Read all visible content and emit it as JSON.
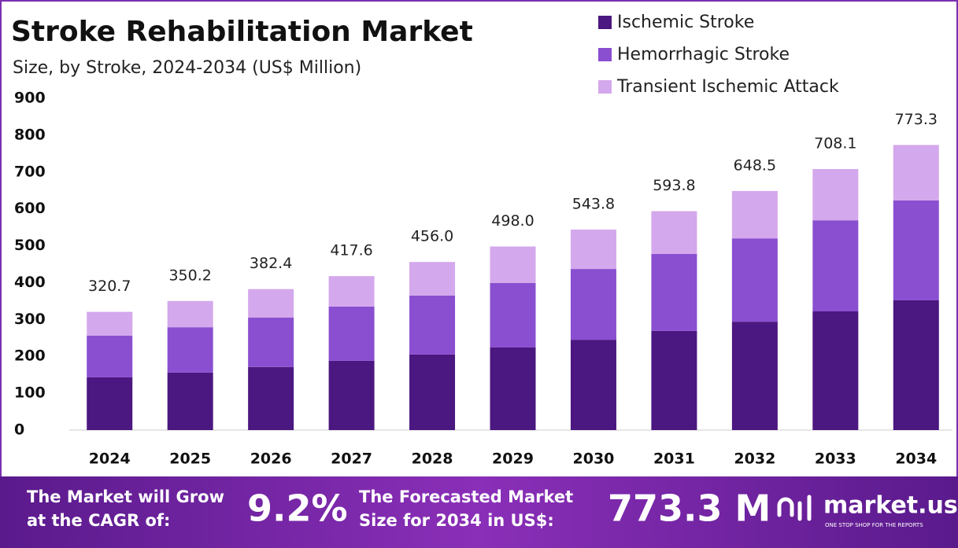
{
  "chart_data": {
    "type": "stacked_bar",
    "title": "Stroke Rehabilitation Market",
    "subtitle": "Size, by Stroke, 2024-2034 (US$ Million)",
    "categories": [
      "2024",
      "2025",
      "2026",
      "2027",
      "2028",
      "2029",
      "2030",
      "2031",
      "2032",
      "2033",
      "2034"
    ],
    "series": [
      {
        "name": "Ischemic Stroke",
        "color": "#4b1780",
        "values": [
          143,
          156,
          171,
          188,
          205,
          224,
          245,
          269,
          294,
          322,
          352
        ]
      },
      {
        "name": "Hemorrhagic Stroke",
        "color": "#8a4fd0",
        "values": [
          113,
          123,
          134,
          147,
          160,
          175,
          192,
          209,
          226,
          247,
          271
        ]
      },
      {
        "name": "Transient Ischemic Attack",
        "color": "#d4a8ec",
        "values": [
          64.7,
          71.2,
          77.4,
          82.6,
          91,
          99,
          106.8,
          115.8,
          128.5,
          139.1,
          150.3
        ]
      }
    ],
    "totals": [
      320.7,
      350.2,
      382.4,
      417.6,
      456,
      498,
      543.8,
      593.8,
      648.5,
      708.1,
      773.3
    ],
    "total_labels": [
      "320.7",
      "350.2",
      "382.4",
      "417.6",
      "456.0",
      "498.0",
      "543.8",
      "593.8",
      "648.5",
      "708.1",
      "773.3"
    ],
    "ylim": [
      0,
      900
    ],
    "yticks": [
      0,
      100,
      200,
      300,
      400,
      500,
      600,
      700,
      800,
      900
    ],
    "grid": false
  },
  "banner": {
    "cagr_text": [
      "The Market will Grow",
      "at the CAGR of:"
    ],
    "cagr_value": "9.2%",
    "forecast_text": [
      "The Forecasted Market",
      "Size for 2034 in US$:"
    ],
    "forecast_value": "773.3 M",
    "brand": "market.us",
    "tagline": "ONE STOP SHOP FOR THE REPORTS"
  }
}
